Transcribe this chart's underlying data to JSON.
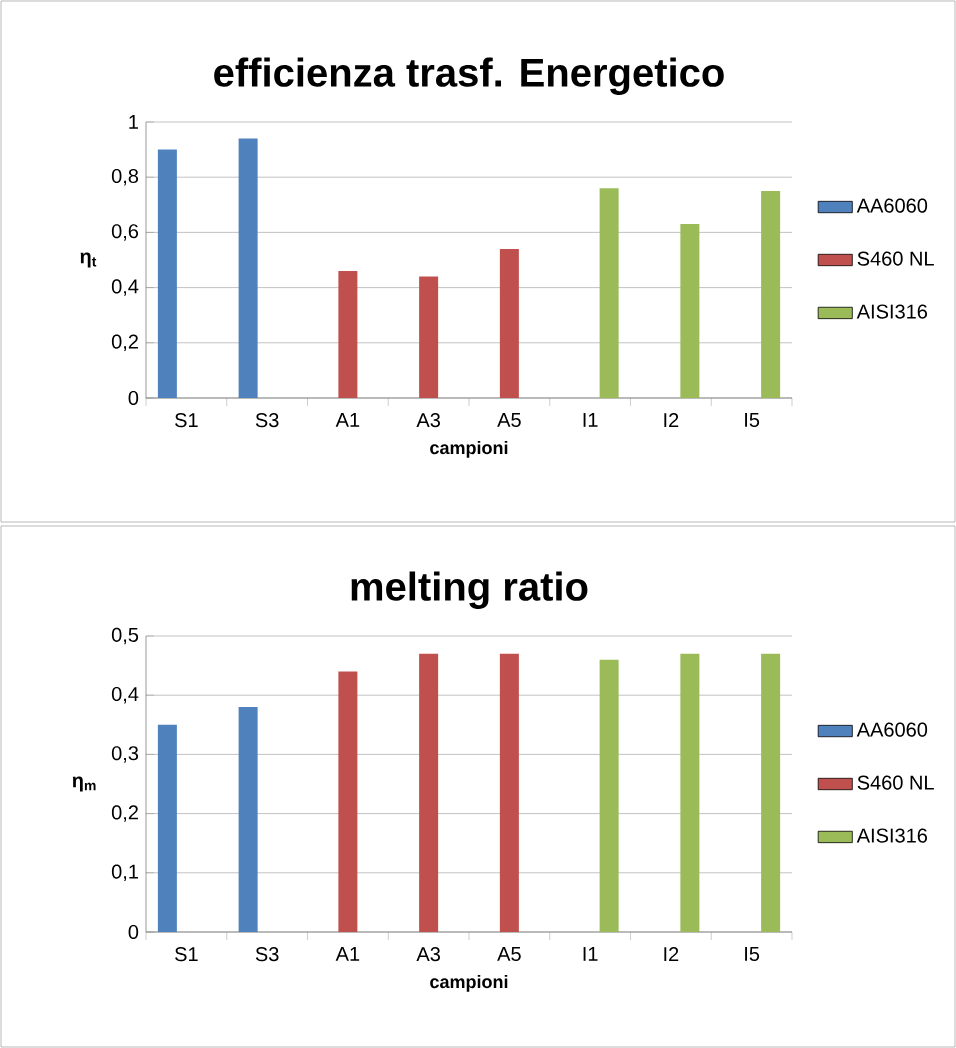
{
  "chart_data": [
    {
      "type": "bar",
      "title": "efficienza trasf. Energetico",
      "xlabel": "campioni",
      "ylabel": "η$_{t}$",
      "categories": [
        "S1",
        "S3",
        "A1",
        "A3",
        "A5",
        "I1",
        "I2",
        "I5"
      ],
      "series": [
        {
          "name": "AA6060",
          "color": "#4f81bd",
          "values": [
            0.9,
            0.94,
            null,
            null,
            null,
            null,
            null,
            null
          ]
        },
        {
          "name": "S460 NL",
          "color": "#c0504d",
          "values": [
            null,
            null,
            0.46,
            0.44,
            0.54,
            null,
            null,
            null
          ]
        },
        {
          "name": "AISI316",
          "color": "#9bbb59",
          "values": [
            null,
            null,
            null,
            null,
            null,
            0.76,
            0.63,
            0.75
          ]
        }
      ],
      "ylim": [
        0,
        1
      ],
      "yticks": [
        0,
        {
          "value": 0.2,
          "label": "0,2"
        },
        {
          "value": 0.4,
          "label": "0,4"
        },
        {
          "value": 0.6,
          "label": "0,6"
        },
        {
          "value": 0.8,
          "label": "0,8"
        },
        1
      ],
      "grid": "y",
      "legend": "right"
    },
    {
      "type": "bar",
      "title": "melting ratio",
      "xlabel": "campioni",
      "ylabel": "η$_{m}$",
      "categories": [
        "S1",
        "S3",
        "A1",
        "A3",
        "A5",
        "I1",
        "I2",
        "I5"
      ],
      "series": [
        {
          "name": "AA6060",
          "color": "#4f81bd",
          "values": [
            0.35,
            0.38,
            null,
            null,
            null,
            null,
            null,
            null
          ]
        },
        {
          "name": "S460 NL",
          "color": "#c0504d",
          "values": [
            null,
            null,
            0.44,
            0.47,
            0.47,
            null,
            null,
            null
          ]
        },
        {
          "name": "AISI316",
          "color": "#9bbb59",
          "values": [
            null,
            null,
            null,
            null,
            null,
            0.46,
            0.47,
            0.47
          ]
        }
      ],
      "ylim": [
        0,
        0.5
      ],
      "yticks": [
        0,
        {
          "value": 0.1,
          "label": "0,1"
        },
        {
          "value": 0.2,
          "label": "0,2"
        },
        {
          "value": 0.3,
          "label": "0,3"
        },
        {
          "value": 0.4,
          "label": "0,4"
        },
        {
          "value": 0.5,
          "label": "0,5"
        }
      ],
      "grid": "y",
      "legend": "right"
    }
  ]
}
